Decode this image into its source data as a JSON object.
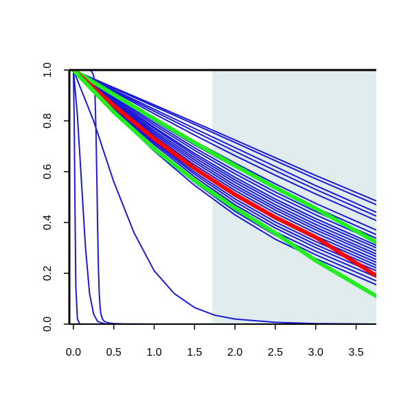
{
  "chart_data": {
    "type": "line",
    "title": "",
    "xlabel": "",
    "ylabel": "",
    "xlim": [
      -0.05,
      3.75
    ],
    "ylim": [
      0.0,
      1.0
    ],
    "x_ticks": [
      0.0,
      0.5,
      1.0,
      1.5,
      2.0,
      2.5,
      3.0,
      3.5
    ],
    "x_tick_labels": [
      "0.0",
      "0.5",
      "1.0",
      "1.5",
      "2.0",
      "2.5",
      "3.0",
      "3.5"
    ],
    "y_ticks": [
      0.0,
      0.2,
      0.4,
      0.6,
      0.8,
      1.0
    ],
    "y_tick_labels": [
      "0.0",
      "0.2",
      "0.4",
      "0.6",
      "0.8",
      "1.0"
    ],
    "grid": false,
    "legend": "none",
    "shaded_region": {
      "x": [
        1.72,
        3.75
      ],
      "color": "#e0eced"
    },
    "colors": {
      "blue": "#1a1ad6",
      "red": "#ff0000",
      "green": "#22ee22"
    },
    "series": [
      {
        "color": "blue",
        "x": [
          0,
          0.01,
          0.02,
          0.03,
          0.05,
          0.08,
          0.12
        ],
        "y": [
          1.0,
          0.8,
          0.45,
          0.15,
          0.02,
          0.0,
          0.0
        ]
      },
      {
        "color": "blue",
        "x": [
          0,
          0.02,
          0.05,
          0.1,
          0.15,
          0.2,
          0.25,
          0.3,
          0.4,
          0.5,
          1.0
        ],
        "y": [
          1.0,
          0.93,
          0.82,
          0.56,
          0.3,
          0.12,
          0.04,
          0.01,
          0.0,
          0.0,
          0.0
        ]
      },
      {
        "color": "blue",
        "x": [
          0,
          0.05,
          0.1,
          0.2,
          0.22,
          0.25,
          0.26,
          0.27,
          0.28,
          0.29,
          0.3,
          0.31,
          0.32,
          0.33,
          0.34,
          0.36,
          0.38,
          0.4,
          0.45,
          0.5,
          0.6,
          1.0,
          3.75
        ],
        "y": [
          1.0,
          1.0,
          1.0,
          0.999,
          0.997,
          0.98,
          0.95,
          0.88,
          0.75,
          0.58,
          0.38,
          0.22,
          0.12,
          0.07,
          0.04,
          0.02,
          0.012,
          0.008,
          0.004,
          0.002,
          0.001,
          0.0,
          0.0
        ]
      },
      {
        "color": "blue",
        "x": [
          0,
          0.25,
          0.5,
          0.75,
          1.0,
          1.25,
          1.5,
          1.75,
          2.0,
          2.5,
          3.0,
          3.75
        ],
        "y": [
          1.0,
          0.8,
          0.56,
          0.36,
          0.21,
          0.12,
          0.065,
          0.035,
          0.02,
          0.007,
          0.002,
          0.0
        ]
      },
      {
        "color": "blue",
        "x": [
          0,
          0.5,
          1.0,
          1.5,
          2.0,
          2.5,
          3.0,
          3.75
        ],
        "y": [
          1.0,
          0.915,
          0.828,
          0.744,
          0.663,
          0.586,
          0.512,
          0.408
        ]
      },
      {
        "color": "blue",
        "x": [
          0,
          0.5,
          1.0,
          1.5,
          2.0,
          2.5,
          3.0,
          3.75
        ],
        "y": [
          1.0,
          0.918,
          0.838,
          0.758,
          0.68,
          0.604,
          0.53,
          0.425
        ]
      },
      {
        "color": "blue",
        "x": [
          0,
          0.5,
          1.0,
          1.5,
          2.0,
          2.5,
          3.0,
          3.75
        ],
        "y": [
          1.0,
          0.922,
          0.846,
          0.77,
          0.695,
          0.62,
          0.545,
          0.44
        ]
      },
      {
        "color": "blue",
        "x": [
          0,
          0.5,
          1.0,
          1.5,
          2.0,
          2.5,
          3.0,
          3.75
        ],
        "y": [
          1.0,
          0.928,
          0.857,
          0.786,
          0.715,
          0.643,
          0.572,
          0.47
        ]
      },
      {
        "color": "blue",
        "x": [
          0,
          0.5,
          1.0,
          1.5,
          2.0,
          2.5,
          3.0,
          3.75
        ],
        "y": [
          1.0,
          0.931,
          0.863,
          0.794,
          0.725,
          0.655,
          0.585,
          0.485
        ]
      },
      {
        "color": "blue",
        "x": [
          0,
          0.5,
          1.0,
          1.5,
          2.0,
          2.5,
          3.0,
          3.75
        ],
        "y": [
          1.0,
          0.905,
          0.81,
          0.72,
          0.634,
          0.552,
          0.475,
          0.37
        ]
      },
      {
        "color": "blue",
        "x": [
          0,
          0.5,
          1.0,
          1.5,
          2.0,
          2.5,
          3.0,
          3.75
        ],
        "y": [
          1.0,
          0.9,
          0.8,
          0.705,
          0.618,
          0.535,
          0.458,
          0.352
        ]
      },
      {
        "color": "blue",
        "x": [
          0,
          0.5,
          1.0,
          1.5,
          2.0,
          2.5,
          3.0,
          3.75
        ],
        "y": [
          1.0,
          0.895,
          0.792,
          0.694,
          0.604,
          0.52,
          0.443,
          0.338
        ]
      },
      {
        "color": "blue",
        "x": [
          0,
          0.5,
          1.0,
          1.5,
          2.0,
          2.5,
          3.0,
          3.75
        ],
        "y": [
          1.0,
          0.89,
          0.784,
          0.684,
          0.592,
          0.507,
          0.43,
          0.325
        ]
      },
      {
        "color": "blue",
        "x": [
          0,
          0.5,
          1.0,
          1.5,
          2.0,
          2.5,
          3.0,
          3.75
        ],
        "y": [
          1.0,
          0.885,
          0.775,
          0.672,
          0.578,
          0.492,
          0.415,
          0.31
        ]
      },
      {
        "color": "blue",
        "x": [
          0,
          0.5,
          1.0,
          1.5,
          2.0,
          2.5,
          3.0,
          3.75
        ],
        "y": [
          1.0,
          0.882,
          0.77,
          0.664,
          0.568,
          0.482,
          0.404,
          0.3
        ]
      },
      {
        "color": "blue",
        "x": [
          0,
          0.5,
          1.0,
          1.5,
          2.0,
          2.5,
          3.0,
          3.75
        ],
        "y": [
          1.0,
          0.878,
          0.762,
          0.655,
          0.558,
          0.47,
          0.392,
          0.288
        ]
      },
      {
        "color": "blue",
        "x": [
          0,
          0.5,
          1.0,
          1.5,
          2.0,
          2.5,
          3.0,
          3.75
        ],
        "y": [
          1.0,
          0.874,
          0.755,
          0.646,
          0.547,
          0.459,
          0.381,
          0.276
        ]
      },
      {
        "color": "blue",
        "x": [
          0,
          0.5,
          1.0,
          1.5,
          2.0,
          2.5,
          3.0,
          3.75
        ],
        "y": [
          1.0,
          0.87,
          0.748,
          0.637,
          0.537,
          0.449,
          0.371,
          0.266
        ]
      },
      {
        "color": "blue",
        "x": [
          0,
          0.5,
          1.0,
          1.5,
          2.0,
          2.5,
          3.0,
          3.75
        ],
        "y": [
          1.0,
          0.866,
          0.741,
          0.627,
          0.526,
          0.437,
          0.359,
          0.254
        ]
      },
      {
        "color": "blue",
        "x": [
          0,
          0.5,
          1.0,
          1.5,
          2.0,
          2.5,
          3.0,
          3.75
        ],
        "y": [
          1.0,
          0.862,
          0.734,
          0.618,
          0.515,
          0.425,
          0.347,
          0.243
        ]
      },
      {
        "color": "blue",
        "x": [
          0,
          0.5,
          1.0,
          1.5,
          2.0,
          2.5,
          3.0,
          3.75
        ],
        "y": [
          1.0,
          0.86,
          0.727,
          0.608,
          0.504,
          0.414,
          0.336,
          0.232
        ]
      },
      {
        "color": "blue",
        "x": [
          0,
          0.5,
          1.0,
          1.5,
          2.0,
          2.5,
          3.0,
          3.75
        ],
        "y": [
          1.0,
          0.855,
          0.72,
          0.598,
          0.493,
          0.402,
          0.325,
          0.221
        ]
      },
      {
        "color": "blue",
        "x": [
          0,
          0.5,
          1.0,
          1.5,
          2.0,
          2.5,
          3.0,
          3.75
        ],
        "y": [
          1.0,
          0.852,
          0.714,
          0.59,
          0.482,
          0.39,
          0.313,
          0.21
        ]
      },
      {
        "color": "blue",
        "x": [
          0,
          0.5,
          1.0,
          1.5,
          2.0,
          2.5,
          3.0,
          3.75
        ],
        "y": [
          1.0,
          0.848,
          0.707,
          0.58,
          0.47,
          0.378,
          0.301,
          0.198
        ]
      },
      {
        "color": "blue",
        "x": [
          0,
          0.5,
          1.0,
          1.5,
          2.0,
          2.5,
          3.0,
          3.75
        ],
        "y": [
          1.0,
          0.843,
          0.698,
          0.568,
          0.456,
          0.363,
          0.287,
          0.185
        ]
      },
      {
        "color": "blue",
        "x": [
          0,
          0.5,
          1.0,
          1.5,
          2.0,
          2.5,
          3.0,
          3.75
        ],
        "y": [
          1.0,
          0.838,
          0.69,
          0.558,
          0.444,
          0.35,
          0.273,
          0.17
        ]
      },
      {
        "color": "blue",
        "x": [
          0,
          0.5,
          1.0,
          1.5,
          2.0,
          2.5,
          3.0,
          3.75
        ],
        "y": [
          1.0,
          0.832,
          0.681,
          0.546,
          0.43,
          0.334,
          0.258,
          0.155
        ]
      },
      {
        "color": "green",
        "x": [
          0,
          0.5,
          1.0,
          1.5,
          2.0,
          2.5,
          3.0,
          3.75
        ],
        "y": [
          1.0,
          0.904,
          0.808,
          0.714,
          0.624,
          0.537,
          0.455,
          0.322
        ]
      },
      {
        "color": "red",
        "x": [
          0,
          0.5,
          1.0,
          1.5,
          2.0,
          2.5,
          3.0,
          3.75
        ],
        "y": [
          1.0,
          0.86,
          0.73,
          0.613,
          0.51,
          0.42,
          0.342,
          0.19
        ]
      },
      {
        "color": "green",
        "x": [
          0,
          0.5,
          1.0,
          1.5,
          2.0,
          2.5,
          3.0,
          3.75
        ],
        "y": [
          1.0,
          0.835,
          0.69,
          0.565,
          0.457,
          0.358,
          0.25,
          0.11
        ]
      }
    ]
  }
}
